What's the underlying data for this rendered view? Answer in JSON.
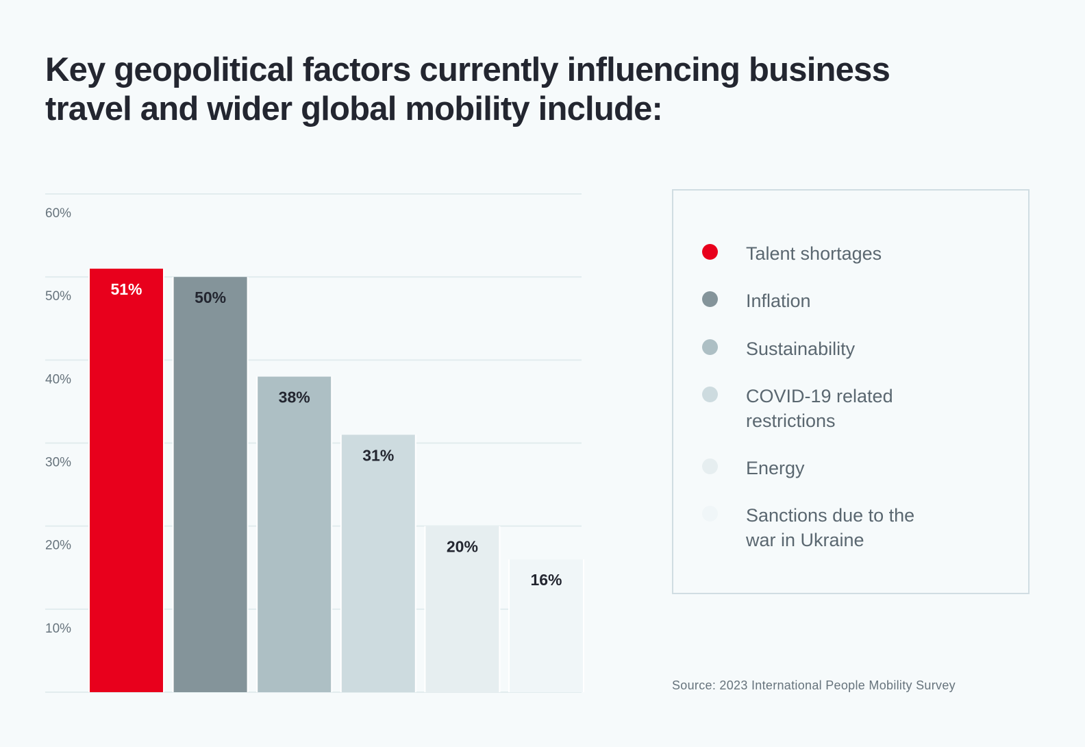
{
  "title": "Key geopolitical factors currently influencing business travel and wider global mobility include:",
  "source": "Source: 2023 International People Mobility Survey",
  "chart_data": {
    "type": "bar",
    "title": "Key geopolitical factors currently influencing business travel and wider global mobility include:",
    "xlabel": "",
    "ylabel": "",
    "ylim": [
      0,
      60
    ],
    "yticks": [
      10,
      20,
      30,
      40,
      50,
      60
    ],
    "ytick_labels": [
      "10%",
      "20%",
      "30%",
      "40%",
      "50%",
      "60%"
    ],
    "grid": true,
    "legend_position": "right",
    "categories": [
      "Talent shortages",
      "Inflation",
      "Sustainability",
      "COVID-19 related restrictions",
      "Energy",
      "Sanctions due to the war in Ukraine"
    ],
    "values": [
      51,
      50,
      38,
      31,
      20,
      16
    ],
    "data_labels": [
      "51%",
      "50%",
      "38%",
      "31%",
      "20%",
      "16%"
    ],
    "colors": [
      "#e8001c",
      "#84949a",
      "#adbfc4",
      "#cddbdf",
      "#e6eef0",
      "#f0f6f8"
    ],
    "label_colors": [
      "#ffffff",
      "#232630",
      "#232630",
      "#232630",
      "#232630",
      "#232630"
    ],
    "gridline_color": "#e2ecee",
    "tick_label_color": "#66737c"
  },
  "legend": {
    "items": [
      {
        "label": "Talent shortages",
        "color": "#e8001c"
      },
      {
        "label": "Inflation",
        "color": "#84949a"
      },
      {
        "label": "Sustainability",
        "color": "#adbfc4"
      },
      {
        "label": "COVID-19 related\nrestrictions",
        "color": "#cddbdf"
      },
      {
        "label": "Energy",
        "color": "#e6eef0"
      },
      {
        "label": "Sanctions due to the\nwar in Ukraine",
        "color": "#f0f6f8"
      }
    ]
  }
}
